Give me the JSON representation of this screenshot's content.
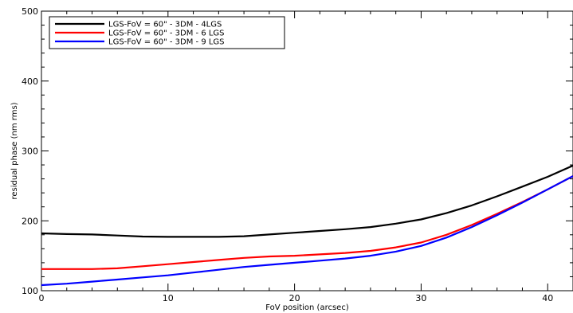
{
  "chart_data": {
    "type": "line",
    "title": "",
    "xlabel": "FoV position (arcsec)",
    "ylabel": "residual phase (nm rms)",
    "xlim": [
      0,
      42
    ],
    "ylim": [
      100,
      500
    ],
    "xticks": [
      0,
      10,
      20,
      30,
      40
    ],
    "yticks": [
      100,
      200,
      300,
      400,
      500
    ],
    "grid": false,
    "legend_position": "top-left",
    "series": [
      {
        "name": "LGS-FoV = 60\" - 3DM - 4LGS",
        "color": "#000000",
        "x": [
          0,
          2,
          4,
          6,
          8,
          10,
          12,
          14,
          16,
          18,
          20,
          22,
          24,
          26,
          28,
          30,
          32,
          34,
          36,
          38,
          40,
          42
        ],
        "y": [
          182,
          181,
          180.5,
          179,
          177.5,
          177,
          177,
          177,
          178,
          180.5,
          183,
          185.5,
          188,
          191,
          196,
          202,
          211,
          222,
          235,
          249,
          263,
          279
        ]
      },
      {
        "name": "LGS-FoV = 60\" - 3DM - 6 LGS",
        "color": "#ff0000",
        "x": [
          0,
          2,
          4,
          6,
          8,
          10,
          12,
          14,
          16,
          18,
          20,
          22,
          24,
          26,
          28,
          30,
          32,
          34,
          36,
          38,
          40,
          42
        ],
        "y": [
          131,
          131,
          131,
          132,
          135,
          138,
          141,
          144,
          147,
          149,
          150,
          152,
          154,
          157,
          162,
          169,
          180,
          194,
          210,
          227,
          245,
          264
        ]
      },
      {
        "name": "LGS-FoV = 60\" - 3DM - 9 LGS",
        "color": "#0000ff",
        "x": [
          0,
          2,
          4,
          6,
          8,
          10,
          12,
          14,
          16,
          18,
          20,
          22,
          24,
          26,
          28,
          30,
          32,
          34,
          36,
          38,
          40,
          42
        ],
        "y": [
          108,
          110,
          113,
          116,
          119,
          122,
          126,
          130,
          134,
          137,
          140,
          143,
          146,
          150,
          156,
          164,
          176,
          191,
          208,
          226,
          245,
          264
        ]
      }
    ]
  }
}
